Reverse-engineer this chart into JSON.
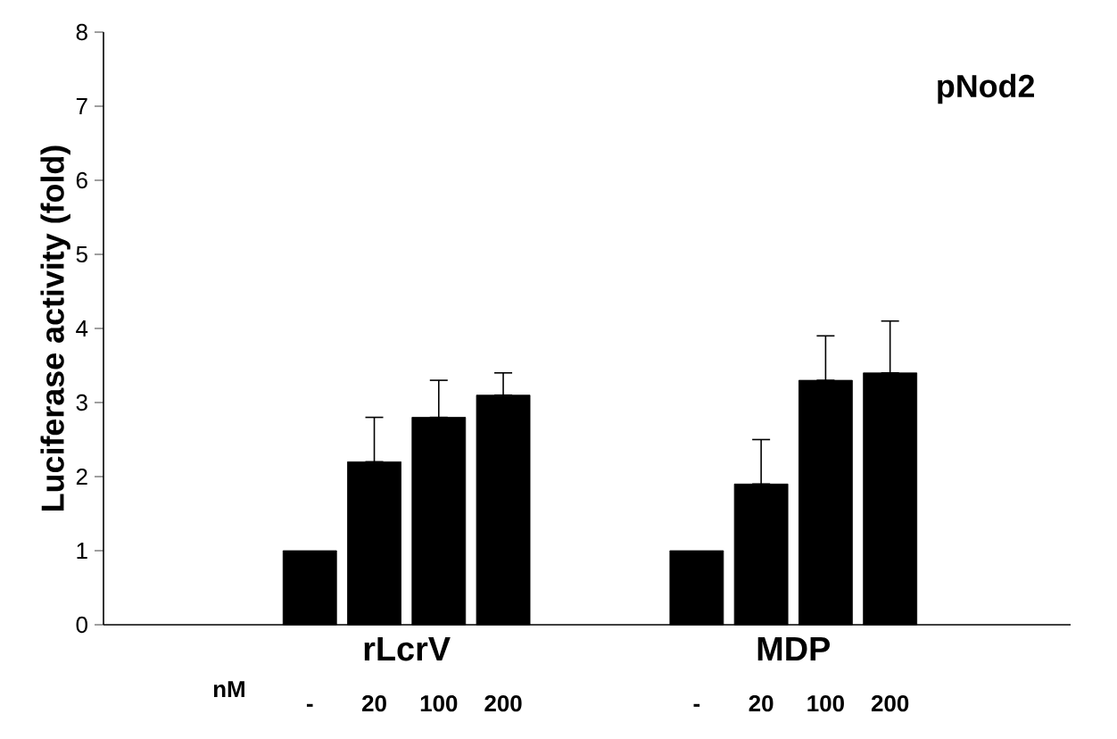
{
  "chart_data": {
    "type": "bar",
    "ylabel": "Luciferase activity (fold)",
    "categories": [
      null,
      null,
      null,
      "-",
      "20",
      "100",
      "200",
      null,
      null,
      "-",
      "20",
      "100",
      "200",
      null,
      null
    ],
    "values": [
      null,
      null,
      null,
      1,
      2.2,
      2.8,
      3.1,
      null,
      null,
      1,
      1.9,
      3.3,
      3.4,
      null,
      null
    ],
    "errors": [
      null,
      null,
      null,
      null,
      [
        2.2,
        2.8
      ],
      [
        2.8,
        3.3
      ],
      [
        3.1,
        3.4
      ],
      null,
      null,
      null,
      [
        1.9,
        2.5
      ],
      [
        3.3,
        3.9
      ],
      [
        3.4,
        4.1
      ],
      null,
      null
    ],
    "color": "#000000",
    "ylim": [
      0,
      8
    ],
    "yticks": [
      0,
      1,
      2,
      3,
      4,
      5,
      6,
      7,
      8
    ],
    "xlabel": "nM",
    "annotations": [
      "rLcrV",
      "MDP",
      "pNod2"
    ]
  }
}
